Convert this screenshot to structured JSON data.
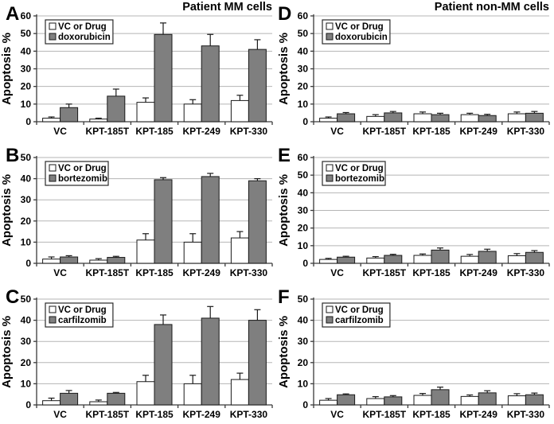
{
  "figure": {
    "column_titles": [
      "Patient MM cells",
      "Patient non-MM cells"
    ],
    "colors": {
      "bar_white": "#ffffff",
      "bar_gray": "#7f7f7f",
      "bar_border": "#1a1a1a",
      "gridline": "#b5b5b5",
      "axis": "#3a3a3a",
      "error_bar": "#1a1a1a",
      "text": "#000000",
      "legend_border": "#2a2a2a",
      "background": "#ffffff"
    }
  },
  "chart_data": [
    {
      "panel": "A",
      "type": "bar",
      "title": "Patient MM cells",
      "ylabel": "Apoptosis %",
      "xlabel": "",
      "ylim": [
        0,
        60
      ],
      "ytick_step": 10,
      "grid": true,
      "legend_position": "top-left",
      "categories": [
        "VC",
        "KPT-185T",
        "KPT-185",
        "KPT-249",
        "KPT-330"
      ],
      "series": [
        {
          "name": "VC or Drug",
          "fill": "white",
          "values": [
            2,
            1.5,
            11,
            10,
            12
          ],
          "errors": [
            0.7,
            0.5,
            2.5,
            2.5,
            3
          ]
        },
        {
          "name": "doxorubicin",
          "fill": "gray",
          "values": [
            8,
            14.5,
            49.5,
            43,
            41
          ],
          "errors": [
            2,
            4,
            6.5,
            6.5,
            5.5
          ]
        }
      ]
    },
    {
      "panel": "B",
      "type": "bar",
      "title": "",
      "ylabel": "Apoptosis %",
      "xlabel": "",
      "ylim": [
        0,
        50
      ],
      "ytick_step": 10,
      "grid": true,
      "legend_position": "top-left",
      "categories": [
        "VC",
        "KPT-185T",
        "KPT-185",
        "KPT-249",
        "KPT-330"
      ],
      "series": [
        {
          "name": "VC or Drug",
          "fill": "white",
          "values": [
            2,
            1.5,
            11,
            10,
            12
          ],
          "errors": [
            1,
            0.7,
            3,
            4,
            3
          ]
        },
        {
          "name": "bortezomib",
          "fill": "gray",
          "values": [
            3,
            2.8,
            39.5,
            41,
            39
          ],
          "errors": [
            0.6,
            0.5,
            1,
            1.5,
            1
          ]
        }
      ]
    },
    {
      "panel": "C",
      "type": "bar",
      "title": "",
      "ylabel": "Apoptosis %",
      "xlabel": "",
      "ylim": [
        0,
        50
      ],
      "ytick_step": 10,
      "grid": true,
      "legend_position": "top-left",
      "categories": [
        "VC",
        "KPT-185T",
        "KPT-185",
        "KPT-249",
        "KPT-330"
      ],
      "series": [
        {
          "name": "VC or Drug",
          "fill": "white",
          "values": [
            2,
            1.5,
            11,
            10,
            12
          ],
          "errors": [
            1.2,
            0.8,
            3,
            4,
            3
          ]
        },
        {
          "name": "carfilzomib",
          "fill": "gray",
          "values": [
            5.5,
            5.5,
            38,
            41,
            40
          ],
          "errors": [
            1.3,
            0.4,
            4.5,
            5.5,
            5
          ]
        }
      ]
    },
    {
      "panel": "D",
      "type": "bar",
      "title": "Patient non-MM cells",
      "ylabel": "Apoptosis %",
      "xlabel": "",
      "ylim": [
        0,
        60
      ],
      "ytick_step": 10,
      "grid": true,
      "legend_position": "top-left",
      "categories": [
        "VC",
        "KPT-185T",
        "KPT-185",
        "KPT-249",
        "KPT-330"
      ],
      "series": [
        {
          "name": "VC or Drug",
          "fill": "white",
          "values": [
            2,
            3,
            4.5,
            4,
            4.5
          ],
          "errors": [
            0.7,
            1,
            1,
            0.8,
            1
          ]
        },
        {
          "name": "doxorubicin",
          "fill": "gray",
          "values": [
            4.5,
            5,
            4,
            3.5,
            4.8
          ],
          "errors": [
            0.7,
            0.8,
            0.8,
            0.7,
            1
          ]
        }
      ]
    },
    {
      "panel": "E",
      "type": "bar",
      "title": "",
      "ylabel": "Apoptosis %",
      "xlabel": "",
      "ylim": [
        0,
        60
      ],
      "ytick_step": 10,
      "grid": true,
      "legend_position": "top-left",
      "categories": [
        "VC",
        "KPT-185T",
        "KPT-185",
        "KPT-249",
        "KPT-330"
      ],
      "series": [
        {
          "name": "VC or Drug",
          "fill": "white",
          "values": [
            2.2,
            3,
            4.5,
            4,
            4.3
          ],
          "errors": [
            0.6,
            0.8,
            0.8,
            1,
            1.2
          ]
        },
        {
          "name": "bortezomib",
          "fill": "gray",
          "values": [
            3.5,
            4.5,
            7.5,
            6.8,
            6.2
          ],
          "errors": [
            0.5,
            0.6,
            1.2,
            1.2,
            1
          ]
        }
      ]
    },
    {
      "panel": "F",
      "type": "bar",
      "title": "",
      "ylabel": "Apoptosis %",
      "xlabel": "",
      "ylim": [
        0,
        50
      ],
      "ytick_step": 10,
      "grid": true,
      "legend_position": "top-left",
      "categories": [
        "VC",
        "KPT-185T",
        "KPT-185",
        "KPT-249",
        "KPT-330"
      ],
      "series": [
        {
          "name": "VC or Drug",
          "fill": "white",
          "values": [
            2.2,
            3,
            4.5,
            4,
            4.3
          ],
          "errors": [
            0.8,
            0.9,
            0.9,
            0.7,
            1
          ]
        },
        {
          "name": "carfilzomib",
          "fill": "gray",
          "values": [
            4.8,
            3.8,
            7.2,
            5.7,
            4.8
          ],
          "errors": [
            0.4,
            0.6,
            1.2,
            1,
            0.8
          ]
        }
      ]
    }
  ]
}
